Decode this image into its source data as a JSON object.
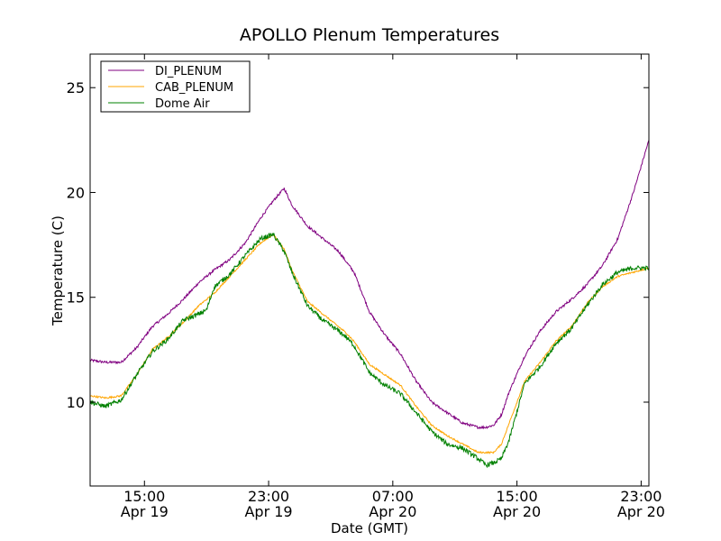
{
  "chart_data": {
    "type": "line",
    "title": "APOLLO Plenum Temperatures",
    "xlabel": "Date (GMT)",
    "ylabel": "Temperature (C)",
    "x_unit": "hours since Apr 19 12:00 GMT",
    "xlim": [
      0,
      36
    ],
    "ylim": [
      6,
      26.6
    ],
    "grid": false,
    "legend_position": "top-left",
    "x_ticks": [
      {
        "x": 3.5,
        "line1": "15:00",
        "line2": "Apr 19"
      },
      {
        "x": 11.5,
        "line1": "23:00",
        "line2": "Apr 19"
      },
      {
        "x": 19.5,
        "line1": "07:00",
        "line2": "Apr 20"
      },
      {
        "x": 27.5,
        "line1": "15:00",
        "line2": "Apr 20"
      },
      {
        "x": 35.5,
        "line1": "23:00",
        "line2": "Apr 20"
      }
    ],
    "y_ticks": [
      10,
      15,
      20,
      25
    ],
    "x": [
      0,
      1,
      2,
      3,
      4,
      5,
      6,
      7,
      7.5,
      8,
      9,
      10,
      11,
      11.8,
      12.5,
      13,
      14,
      15,
      16,
      16.5,
      17,
      18,
      19,
      20,
      21,
      22,
      23,
      24,
      25,
      25.5,
      26,
      26.5,
      27,
      28,
      29,
      30,
      31,
      32,
      33,
      34,
      35,
      36
    ],
    "series": [
      {
        "name": "DI_PLENUM",
        "color": "#800080",
        "values": [
          12.0,
          11.9,
          11.9,
          12.6,
          13.6,
          14.2,
          14.9,
          15.7,
          16.0,
          16.3,
          16.8,
          17.6,
          18.8,
          19.6,
          20.2,
          19.4,
          18.4,
          17.8,
          17.2,
          16.7,
          16.2,
          14.3,
          13.2,
          12.3,
          11.0,
          10.0,
          9.5,
          9.0,
          8.8,
          8.8,
          8.9,
          9.4,
          10.5,
          12.2,
          13.4,
          14.3,
          14.9,
          15.6,
          16.5,
          17.8,
          20.0,
          22.5
        ]
      },
      {
        "name": "CAB_PLENUM",
        "color": "#ffa500",
        "values": [
          10.3,
          10.2,
          10.3,
          11.3,
          12.5,
          13.1,
          13.8,
          14.6,
          14.9,
          15.2,
          16.0,
          16.8,
          17.6,
          18.0,
          17.3,
          16.3,
          14.8,
          14.2,
          13.6,
          13.3,
          12.9,
          11.8,
          11.3,
          10.8,
          9.8,
          8.9,
          8.4,
          8.0,
          7.6,
          7.6,
          7.6,
          8.0,
          9.0,
          11.0,
          11.9,
          12.9,
          13.6,
          14.7,
          15.5,
          16.0,
          16.2,
          16.4
        ]
      },
      {
        "name": "Dome Air",
        "color": "#008000",
        "values": [
          10.0,
          9.8,
          10.1,
          11.3,
          12.4,
          13.0,
          13.9,
          14.2,
          14.4,
          15.5,
          16.1,
          17.0,
          17.8,
          18.0,
          17.2,
          16.2,
          14.6,
          13.9,
          13.4,
          13.1,
          12.7,
          11.4,
          10.8,
          10.4,
          9.5,
          8.6,
          8.0,
          7.8,
          7.3,
          7.0,
          7.1,
          7.3,
          8.2,
          10.9,
          11.7,
          12.8,
          13.5,
          14.6,
          15.6,
          16.2,
          16.4,
          16.4
        ]
      }
    ]
  }
}
